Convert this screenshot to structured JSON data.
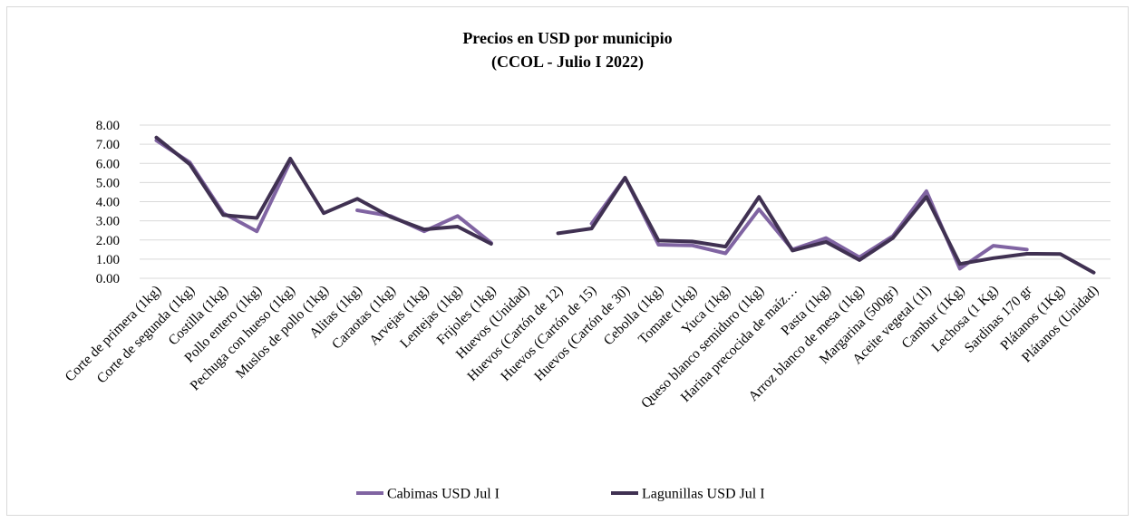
{
  "chart_data": {
    "type": "line",
    "title": "Precios en USD por municipio",
    "subtitle": "(CCOL - Julio I 2022)",
    "xlabel": "",
    "ylabel": "",
    "ylim": [
      0,
      8
    ],
    "y_ticks": [
      "0.00",
      "1.00",
      "2.00",
      "3.00",
      "4.00",
      "5.00",
      "6.00",
      "7.00",
      "8.00"
    ],
    "grid": true,
    "legend_position": "bottom",
    "categories": [
      "Corte de primera (1kg)",
      "Corte de segunda (1kg)",
      "Costilla (1kg)",
      "Pollo entero (1kg)",
      "Pechuga con hueso (1kg)",
      "Muslos de pollo (1kg)",
      "Alitas (1kg)",
      "Caraotas (1kg)",
      "Arvejas (1kg)",
      "Lentejas (1kg)",
      "Frijoles (1kg)",
      "Huevos (Unidad)",
      "Huevos (Cartón de 12)",
      "Huevos (Cartón de 15)",
      "Huevos (Cartón de 30)",
      "Cebolla (1kg)",
      "Tomate (1kg)",
      "Yuca (1kg)",
      "Queso blanco semiduro (1kg)",
      "Harina precocida de maíz…",
      "Pasta (1kg)",
      "Arroz blanco de mesa (1kg)",
      "Margarina (500gr)",
      "Aceite vegetal (1l)",
      "Cambur (1Kg)",
      "Lechosa (1 Kg)",
      "Sardinas 170 gr",
      "Plátanos (1Kg)",
      "Plátanos (Unidad)"
    ],
    "series": [
      {
        "name": "Cabimas USD Jul I",
        "color": "#8064a2",
        "values": [
          7.2,
          6.05,
          3.4,
          2.45,
          6.1,
          null,
          3.55,
          3.25,
          2.45,
          3.25,
          1.85,
          null,
          null,
          2.85,
          5.25,
          1.75,
          1.72,
          1.3,
          3.6,
          1.5,
          2.1,
          1.1,
          2.2,
          4.55,
          0.5,
          1.7,
          1.5,
          null,
          null
        ]
      },
      {
        "name": "Lagunillas USD Jul I",
        "color": "#403152",
        "values": [
          7.35,
          5.95,
          3.3,
          3.15,
          6.25,
          3.4,
          4.15,
          3.2,
          2.55,
          2.7,
          1.8,
          null,
          2.35,
          2.6,
          5.25,
          1.97,
          1.92,
          1.65,
          4.25,
          1.45,
          1.9,
          0.95,
          2.1,
          4.25,
          0.75,
          1.05,
          1.28,
          1.27,
          0.3
        ]
      }
    ]
  }
}
